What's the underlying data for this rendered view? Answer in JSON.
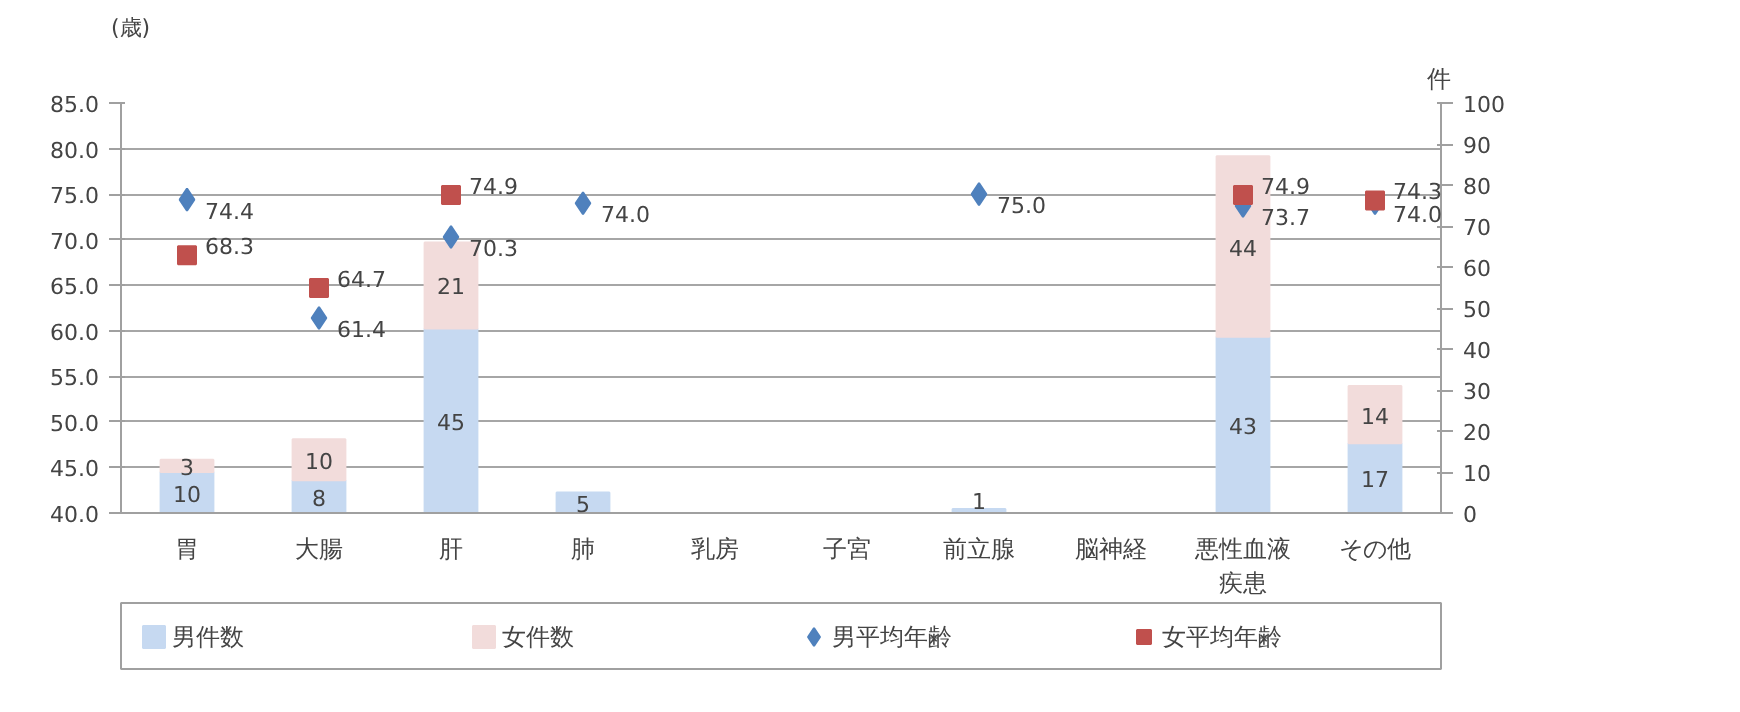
{
  "chart_data": {
    "type": "bar",
    "stacked": true,
    "ylabel": "(歳)",
    "y2label": "件",
    "categories": [
      "胃",
      "大腸",
      "肝",
      "肺",
      "乳房",
      "子宮",
      "前立腺",
      "脳神経",
      "悪性血液疾患",
      "その他"
    ],
    "series": [
      {
        "name": "男件数",
        "axis": "y2",
        "color": "#c6d9f1",
        "values": [
          10,
          8,
          45,
          5,
          null,
          null,
          1,
          null,
          43,
          17
        ]
      },
      {
        "name": "女件数",
        "axis": "y2",
        "color": "#f2dcdb",
        "values": [
          3,
          10,
          21,
          null,
          null,
          null,
          null,
          null,
          44,
          14
        ]
      },
      {
        "name": "男平均年齢",
        "type": "scatter",
        "marker": "diamond",
        "color": "#4f81bd",
        "values": [
          74.4,
          61.4,
          70.3,
          74.0,
          null,
          null,
          75.0,
          null,
          73.7,
          74.0
        ],
        "value_labels": [
          "74.4",
          "61.4",
          "70.3",
          "74.0",
          null,
          null,
          "75.0",
          null,
          "73.7",
          "74.0"
        ]
      },
      {
        "name": "女平均年齢",
        "type": "scatter",
        "marker": "square",
        "color": "#c0504d",
        "values": [
          68.3,
          64.7,
          74.9,
          null,
          null,
          null,
          null,
          null,
          74.9,
          74.3
        ],
        "value_labels": [
          "68.3",
          "64.7",
          "74.9",
          null,
          null,
          null,
          null,
          null,
          "74.9",
          "74.3"
        ]
      }
    ],
    "data_labels": true,
    "ylim": [
      40,
      85
    ],
    "yticks": [
      {
        "value": 40,
        "label": "40.0"
      },
      {
        "value": 45,
        "label": "45.0"
      },
      {
        "value": 50,
        "label": "50.0"
      },
      {
        "value": 55,
        "label": "55.0"
      },
      {
        "value": 60,
        "label": "60.0"
      },
      {
        "value": 65,
        "label": "65.0"
      },
      {
        "value": 70,
        "label": "70.0"
      },
      {
        "value": 75,
        "label": "75.0"
      },
      {
        "value": 80,
        "label": "80.0"
      },
      {
        "value": 85,
        "label": "85.0"
      }
    ],
    "y2lim": [
      0,
      100
    ],
    "y2ticks": [
      0,
      10,
      20,
      30,
      40,
      50,
      60,
      70,
      80,
      90,
      100
    ],
    "grid": "y",
    "legend": "bottom"
  }
}
